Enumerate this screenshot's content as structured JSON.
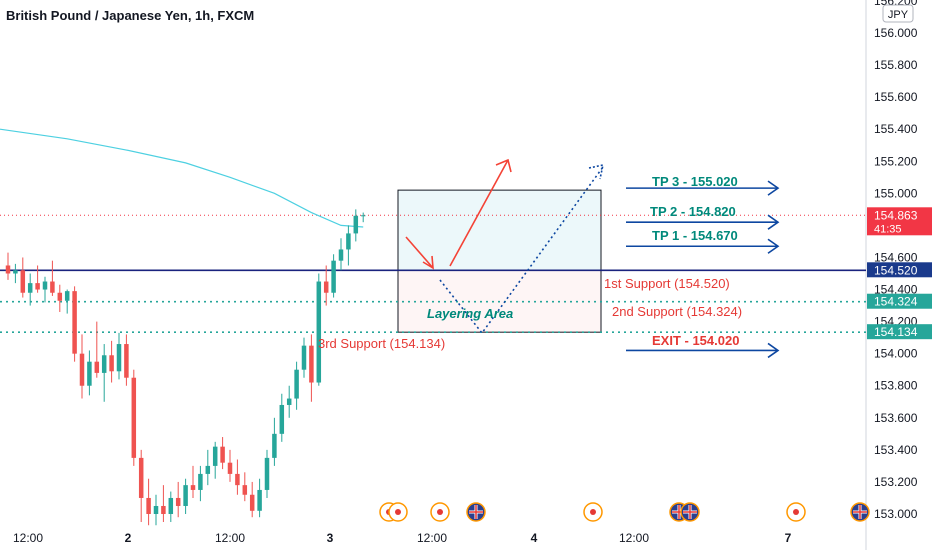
{
  "header": {
    "title": "British Pound / Japanese Yen, 1h, FXCM"
  },
  "currency_badge": "JPY",
  "price_axis": {
    "ticks": [
      "156.200",
      "156.000",
      "155.800",
      "155.600",
      "155.400",
      "155.200",
      "155.000",
      "154.800",
      "154.600",
      "154.400",
      "154.200",
      "154.000",
      "153.800",
      "153.600",
      "153.400",
      "153.200",
      "153.000"
    ],
    "current_price": "154.863",
    "countdown": "41:35",
    "level_labels": [
      "154.520",
      "154.324",
      "154.134"
    ]
  },
  "time_axis": {
    "ticks": [
      "12:00",
      "2",
      "12:00",
      "3",
      "12:00",
      "4",
      "12:00",
      "7"
    ]
  },
  "annotations": {
    "tp3": "TP 3 - 155.020",
    "tp2": "TP 2 - 154.820",
    "tp1": "TP 1 - 154.670",
    "exit": "EXIT - 154.020",
    "support1": "1st Support (154.520)",
    "support2": "2nd Support (154.324)",
    "support3": "3rd Support (154.134)",
    "layering": "Layering Area"
  },
  "colors": {
    "up": "#26a69a",
    "down": "#ef5350",
    "ma": "#4dd0e1",
    "support_line": "#1a237e",
    "dotted_level": "#26a69a",
    "price_badge": "#f23645",
    "level_badge": "#26a69a",
    "support_badge": "#1a3a8c",
    "arrow_blue": "#0d47a1",
    "arrow_red": "#f44336",
    "tp_text": "#00897b",
    "exit_text": "#e53935"
  },
  "chart_data": {
    "type": "candlestick",
    "symbol": "British Pound / Japanese Yen",
    "interval": "1h",
    "source": "FXCM",
    "ylim": [
      152.98,
      156.22
    ],
    "candles": [
      [
        154.55,
        154.63,
        154.46,
        154.5
      ],
      [
        154.5,
        154.56,
        154.44,
        154.52
      ],
      [
        154.52,
        154.6,
        154.35,
        154.38
      ],
      [
        154.38,
        154.5,
        154.3,
        154.44
      ],
      [
        154.44,
        154.55,
        154.38,
        154.4
      ],
      [
        154.4,
        154.48,
        154.32,
        154.45
      ],
      [
        154.45,
        154.58,
        154.36,
        154.38
      ],
      [
        154.38,
        154.43,
        154.26,
        154.33
      ],
      [
        154.33,
        154.4,
        154.25,
        154.39
      ],
      [
        154.39,
        154.42,
        153.95,
        154.0
      ],
      [
        154.0,
        154.12,
        153.72,
        153.8
      ],
      [
        153.8,
        154.02,
        153.74,
        153.95
      ],
      [
        153.95,
        154.2,
        153.85,
        153.88
      ],
      [
        153.88,
        154.06,
        153.7,
        153.99
      ],
      [
        153.99,
        154.08,
        153.82,
        153.89
      ],
      [
        153.89,
        154.13,
        153.84,
        154.06
      ],
      [
        154.06,
        154.12,
        153.8,
        153.85
      ],
      [
        153.85,
        153.9,
        153.3,
        153.35
      ],
      [
        153.35,
        153.4,
        152.95,
        153.1
      ],
      [
        153.1,
        153.22,
        152.93,
        153.0
      ],
      [
        153.0,
        153.12,
        152.93,
        153.05
      ],
      [
        153.05,
        153.18,
        152.95,
        153.0
      ],
      [
        153.0,
        153.14,
        152.95,
        153.1
      ],
      [
        153.1,
        153.2,
        152.98,
        153.05
      ],
      [
        153.05,
        153.22,
        153.0,
        153.18
      ],
      [
        153.18,
        153.3,
        153.1,
        153.15
      ],
      [
        153.15,
        153.3,
        153.08,
        153.25
      ],
      [
        153.25,
        153.4,
        153.18,
        153.3
      ],
      [
        153.3,
        153.45,
        153.22,
        153.42
      ],
      [
        153.42,
        153.48,
        153.28,
        153.32
      ],
      [
        153.32,
        153.4,
        153.2,
        153.25
      ],
      [
        153.25,
        153.34,
        153.12,
        153.18
      ],
      [
        153.18,
        153.26,
        153.08,
        153.12
      ],
      [
        153.12,
        153.2,
        152.98,
        153.02
      ],
      [
        153.02,
        153.22,
        152.98,
        153.15
      ],
      [
        153.15,
        153.4,
        153.1,
        153.35
      ],
      [
        153.35,
        153.6,
        153.3,
        153.5
      ],
      [
        153.5,
        153.75,
        153.45,
        153.68
      ],
      [
        153.68,
        153.8,
        153.6,
        153.72
      ],
      [
        153.72,
        153.95,
        153.65,
        153.9
      ],
      [
        153.9,
        154.1,
        153.85,
        154.05
      ],
      [
        154.05,
        154.12,
        153.7,
        153.82
      ],
      [
        153.82,
        154.5,
        153.8,
        154.45
      ],
      [
        154.45,
        154.55,
        154.3,
        154.38
      ],
      [
        154.38,
        154.62,
        154.35,
        154.58
      ],
      [
        154.58,
        154.72,
        154.52,
        154.65
      ],
      [
        154.65,
        154.8,
        154.55,
        154.75
      ],
      [
        154.75,
        154.9,
        154.7,
        154.86
      ],
      [
        154.86,
        154.88,
        154.82,
        154.863
      ]
    ],
    "moving_average": [
      [
        0,
        155.4
      ],
      [
        8,
        155.34
      ],
      [
        16,
        155.27
      ],
      [
        24,
        155.19
      ],
      [
        30,
        155.1
      ],
      [
        36,
        155.0
      ],
      [
        41,
        154.88
      ],
      [
        45,
        154.8
      ],
      [
        48,
        154.79
      ]
    ],
    "levels": [
      {
        "name": "1st Support",
        "value": 154.52
      },
      {
        "name": "2nd Support",
        "value": 154.324
      },
      {
        "name": "3rd Support",
        "value": 154.134
      },
      {
        "name": "TP 1",
        "value": 154.67
      },
      {
        "name": "TP 2",
        "value": 154.82
      },
      {
        "name": "TP 3",
        "value": 155.02
      },
      {
        "name": "EXIT",
        "value": 154.02
      }
    ]
  }
}
